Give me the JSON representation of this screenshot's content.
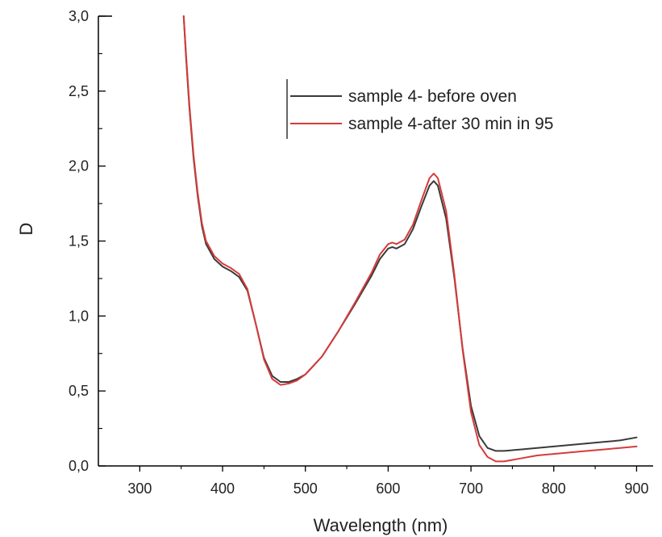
{
  "chart_data": {
    "type": "line",
    "title": "",
    "xlabel": "Wavelength (nm)",
    "ylabel": "D",
    "xlim": [
      250,
      920
    ],
    "ylim": [
      0,
      3.0
    ],
    "xticks": [
      300,
      400,
      500,
      600,
      700,
      800,
      900
    ],
    "xtick_labels": [
      "300",
      "400",
      "500",
      "600",
      "700",
      "800",
      "900"
    ],
    "yticks": [
      0,
      0.5,
      1.0,
      1.5,
      2.0,
      2.5,
      3.0
    ],
    "ytick_labels": [
      "0,0",
      "0,5",
      "1,0",
      "1,5",
      "2,0",
      "2,5",
      "3,0"
    ],
    "grid": false,
    "legend_position": "top-right",
    "series": [
      {
        "name": "sample 4- before oven",
        "color": "#3a3a3a",
        "x": [
          353,
          356,
          360,
          365,
          370,
          375,
          380,
          390,
          400,
          410,
          420,
          430,
          440,
          450,
          460,
          470,
          480,
          490,
          500,
          520,
          540,
          560,
          580,
          590,
          600,
          605,
          610,
          620,
          630,
          640,
          650,
          655,
          660,
          670,
          680,
          690,
          700,
          710,
          720,
          730,
          740,
          760,
          780,
          800,
          820,
          840,
          860,
          880,
          900
        ],
        "y": [
          3.0,
          2.72,
          2.38,
          2.05,
          1.8,
          1.6,
          1.48,
          1.38,
          1.33,
          1.3,
          1.26,
          1.17,
          0.95,
          0.72,
          0.6,
          0.56,
          0.56,
          0.58,
          0.61,
          0.73,
          0.9,
          1.08,
          1.27,
          1.38,
          1.45,
          1.46,
          1.45,
          1.48,
          1.58,
          1.73,
          1.87,
          1.9,
          1.87,
          1.65,
          1.25,
          0.78,
          0.4,
          0.2,
          0.12,
          0.1,
          0.1,
          0.11,
          0.12,
          0.13,
          0.14,
          0.15,
          0.16,
          0.17,
          0.19
        ]
      },
      {
        "name": "sample 4-after 30 min in 95",
        "color": "#d63b3b",
        "x": [
          353,
          356,
          360,
          365,
          370,
          375,
          380,
          390,
          400,
          410,
          420,
          430,
          440,
          450,
          460,
          470,
          480,
          490,
          500,
          520,
          540,
          560,
          580,
          590,
          600,
          605,
          610,
          620,
          630,
          640,
          650,
          655,
          660,
          670,
          680,
          690,
          700,
          710,
          720,
          730,
          740,
          760,
          780,
          800,
          820,
          840,
          860,
          880,
          900
        ],
        "y": [
          3.0,
          2.74,
          2.4,
          2.07,
          1.82,
          1.62,
          1.5,
          1.4,
          1.35,
          1.32,
          1.28,
          1.18,
          0.95,
          0.71,
          0.58,
          0.54,
          0.55,
          0.57,
          0.61,
          0.73,
          0.9,
          1.09,
          1.29,
          1.41,
          1.48,
          1.49,
          1.48,
          1.51,
          1.61,
          1.77,
          1.92,
          1.95,
          1.92,
          1.7,
          1.27,
          0.77,
          0.36,
          0.14,
          0.06,
          0.03,
          0.03,
          0.05,
          0.07,
          0.08,
          0.09,
          0.1,
          0.11,
          0.12,
          0.13
        ]
      }
    ]
  }
}
